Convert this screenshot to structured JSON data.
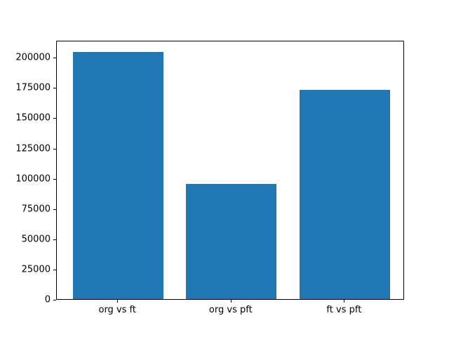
{
  "chart_data": {
    "type": "bar",
    "categories": [
      "org vs ft",
      "org vs pft",
      "ft vs pft"
    ],
    "values": [
      204000,
      95000,
      173000
    ],
    "title": "",
    "xlabel": "",
    "ylabel": "",
    "ylim": [
      0,
      214200
    ],
    "yticks": [
      0,
      25000,
      50000,
      75000,
      100000,
      125000,
      150000,
      175000,
      200000
    ],
    "bar_width_fraction": 0.8,
    "bar_color": "#1f77b4",
    "grid": false,
    "legend_position": "none"
  },
  "colors": {
    "background": "#ffffff",
    "axis": "#000000",
    "tick_text": "#000000",
    "bar": "#1f77b4"
  }
}
